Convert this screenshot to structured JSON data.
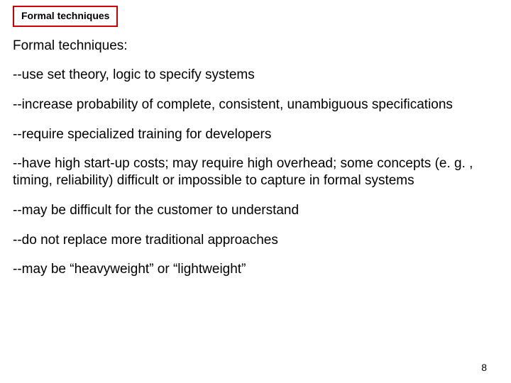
{
  "titleBox": {
    "text": "Formal techniques",
    "borderColor": "#cc0000",
    "borderWidth": 2,
    "fontSize": 14,
    "fontWeight": "bold"
  },
  "heading": {
    "text": "Formal techniques:",
    "fontSize": 19
  },
  "bullets": {
    "b0": "--use set theory, logic to specify systems",
    "b1": "--increase probability of complete, consistent, unambiguous specifications",
    "b2": "--require specialized training for developers",
    "b3": "--have high start-up costs; may require high overhead; some concepts (e. g. , timing, reliability) difficult or impossible to capture in formal systems",
    "b4": "--may be difficult for the customer to understand",
    "b5": "--do not replace more traditional approaches",
    "b6": "--may be “heavyweight” or “lightweight”"
  },
  "pageNumber": "8",
  "style": {
    "backgroundColor": "#ffffff",
    "textColor": "#000000",
    "fontFamily": "Arial",
    "bodyFontSize": 19,
    "lineHeight": 1.25
  }
}
